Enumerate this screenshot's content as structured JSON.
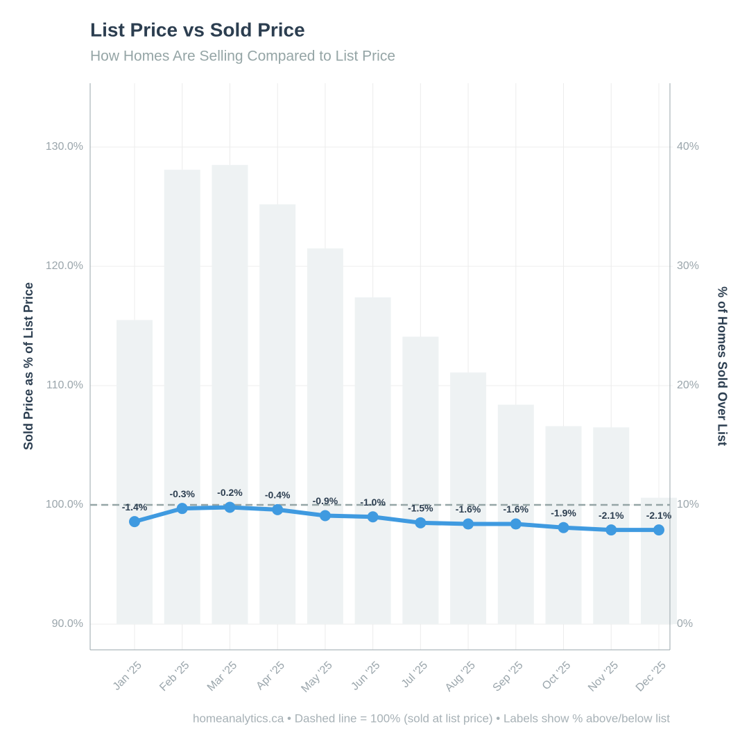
{
  "chart_data": {
    "type": "combo",
    "title": "List Price vs Sold Price",
    "subtitle": "How Homes Are Selling Compared to List Price",
    "y_label": "Sold Price as % of List Price",
    "y2_label": "% of Homes Sold Over List",
    "footer": "homeanalytics.ca • Dashed line = 100% (sold at list price) • Labels show % above/below list",
    "categories": [
      "Jan '25",
      "Feb '25",
      "Mar '25",
      "Apr '25",
      "May '25",
      "Jun '25",
      "Jul '25",
      "Aug '25",
      "Sep '25",
      "Oct '25",
      "Nov '25",
      "Dec '25"
    ],
    "series": [
      {
        "type": "bar",
        "axis": "y2",
        "color": "#eef2f3",
        "values": [
          25.5,
          38.1,
          38.5,
          35.2,
          31.5,
          27.4,
          24.1,
          21.1,
          18.4,
          16.6,
          16.5,
          10.6
        ]
      },
      {
        "type": "line",
        "axis": "y",
        "color": "#3f9ae0",
        "values": [
          98.6,
          99.7,
          99.8,
          99.6,
          99.1,
          99.0,
          98.5,
          98.4,
          98.4,
          98.1,
          97.9,
          97.9
        ],
        "value_labels": [
          "-1.4%",
          "-0.3%",
          "-0.2%",
          "-0.4%",
          "-0.9%",
          "-1.0%",
          "-1.5%",
          "-1.6%",
          "-1.6%",
          "-1.9%",
          "-2.1%",
          "-2.1%"
        ]
      }
    ],
    "reference_line": 100,
    "ylim": [
      87.85,
      135.35
    ],
    "yticks": [
      {
        "value": 90,
        "label": "90.0%"
      },
      {
        "value": 100,
        "label": "100.0%"
      },
      {
        "value": 110,
        "label": "110.0%"
      },
      {
        "value": 120,
        "label": "120.0%"
      },
      {
        "value": 130,
        "label": "130.0%"
      }
    ],
    "y2lim": [
      -2.15,
      45.35
    ],
    "y2ticks": [
      {
        "value": 0,
        "label": "0%"
      },
      {
        "value": 10,
        "label": "10%"
      },
      {
        "value": 20,
        "label": "20%"
      },
      {
        "value": 30,
        "label": "30%"
      },
      {
        "value": 40,
        "label": "40%"
      }
    ],
    "grid": true
  }
}
